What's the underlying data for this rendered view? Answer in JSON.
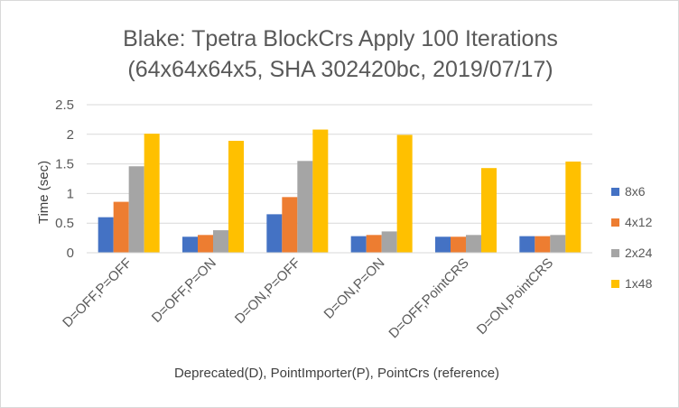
{
  "chart_data": {
    "type": "bar",
    "title_lines": [
      "Blake: Tpetra BlockCrs Apply 100 Iterations",
      "(64x64x64x5, SHA 302420bc, 2019/07/17)"
    ],
    "xlabel": "Deprecated(D), PointImporter(P), PointCrs (reference)",
    "ylabel": "Time (sec)",
    "ylim": [
      0,
      2.5
    ],
    "yticks": [
      0,
      0.5,
      1,
      1.5,
      2,
      2.5
    ],
    "ytick_labels": [
      "0",
      "0.5",
      "1",
      "1.5",
      "2",
      "2.5"
    ],
    "grid": true,
    "legend_position": "right",
    "categories": [
      "D=OFF,P=OFF",
      "D=OFF,P=ON",
      "D=ON,P=OFF",
      "D=ON,P=ON",
      "D=OFF,PointCRS",
      "D=ON,PointCRS"
    ],
    "series": [
      {
        "name": "8x6",
        "color": "#4472c4",
        "values": [
          0.6,
          0.27,
          0.65,
          0.28,
          0.27,
          0.28
        ]
      },
      {
        "name": "4x12",
        "color": "#ed7d31",
        "values": [
          0.86,
          0.3,
          0.94,
          0.3,
          0.27,
          0.28
        ]
      },
      {
        "name": "2x24",
        "color": "#a5a5a5",
        "values": [
          1.46,
          0.38,
          1.55,
          0.36,
          0.3,
          0.3
        ]
      },
      {
        "name": "1x48",
        "color": "#ffc000",
        "values": [
          2.01,
          1.89,
          2.08,
          1.99,
          1.43,
          1.54
        ]
      }
    ]
  }
}
